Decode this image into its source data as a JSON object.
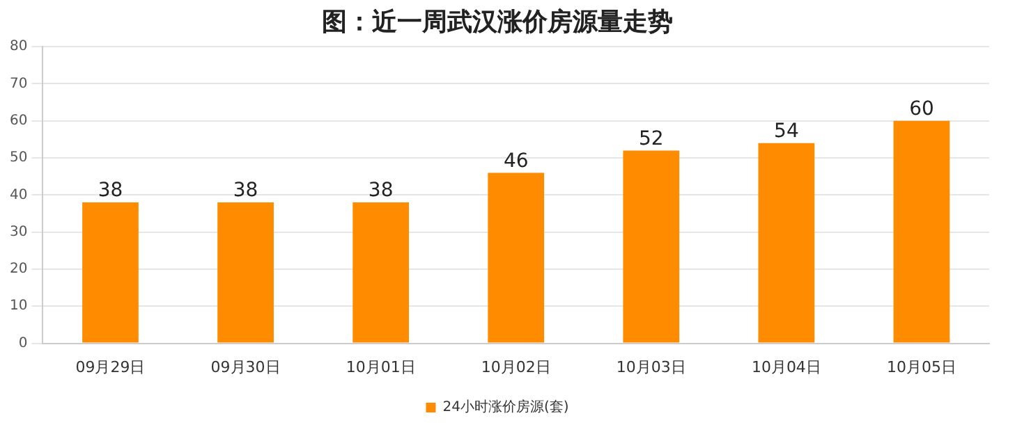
{
  "chart_data": {
    "type": "bar",
    "title": "图：近一周武汉涨价房源量走势",
    "categories": [
      "09月29日",
      "09月30日",
      "10月01日",
      "10月02日",
      "10月03日",
      "10月04日",
      "10月05日"
    ],
    "series": [
      {
        "name": "24小时涨价房源(套)",
        "color": "#ff8c00",
        "values": [
          38,
          38,
          38,
          46,
          52,
          54,
          60
        ]
      }
    ],
    "ylim": [
      0,
      80
    ],
    "yticks": [
      0,
      10,
      20,
      30,
      40,
      50,
      60,
      70,
      80
    ],
    "grid": "y",
    "legend": "bottom",
    "data_labels": true
  }
}
